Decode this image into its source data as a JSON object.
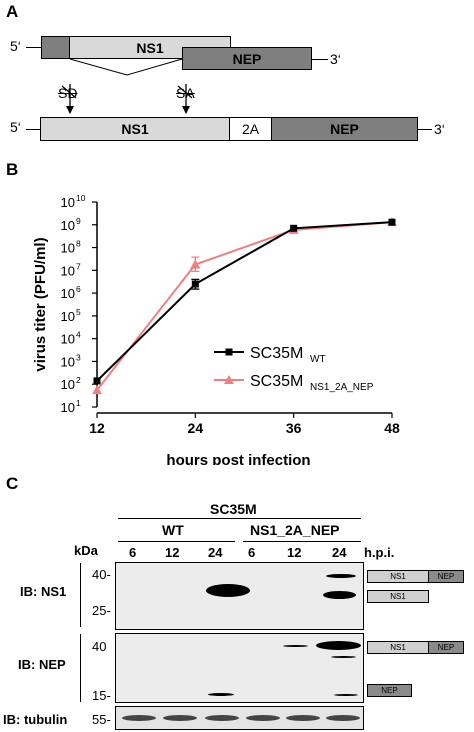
{
  "panel_a": {
    "letter": "A",
    "five_prime": "5‘",
    "three_prime": "3‘",
    "ns1": "NS1",
    "nep": "NEP",
    "two_a": "2A",
    "sd": "SD",
    "sa": "SA"
  },
  "panel_b": {
    "letter": "B",
    "chart_data": {
      "type": "line",
      "x": [
        12,
        24,
        36,
        48
      ],
      "xlabel": "hours post infection",
      "ylabel": "virus titer (PFU/ml)",
      "y_log_scale": true,
      "ylim_exponents": [
        1,
        10
      ],
      "yticks": [
        "10",
        "10",
        "10",
        "10",
        "10",
        "10",
        "10",
        "10",
        "10",
        "10"
      ],
      "ytick_exponents": [
        "1",
        "2",
        "3",
        "4",
        "5",
        "6",
        "7",
        "8",
        "9",
        "10"
      ],
      "xticks": [
        "12",
        "24",
        "36",
        "48"
      ],
      "series": [
        {
          "name": "SC35M",
          "subscript": "WT",
          "color": "#000000",
          "marker": "square",
          "values": [
            140,
            2500000,
            700000000,
            1300000000
          ]
        },
        {
          "name": "SC35M",
          "subscript": "NS1_2A_NEP",
          "color": "#f08080",
          "marker": "triangle",
          "values": [
            55,
            18000000,
            600000000,
            1300000000
          ]
        }
      ],
      "legend_position": "lower-right"
    }
  },
  "panel_c": {
    "letter": "C",
    "strain": "SC35M",
    "group_wt": "WT",
    "group_mut": "NS1_2A_NEP",
    "kda": "kDa",
    "hpi": "h.p.i.",
    "lanes": [
      "6",
      "12",
      "24",
      "6",
      "12",
      "24"
    ],
    "ib_ns1": "IB: NS1",
    "ib_nep": "IB: NEP",
    "ib_tubulin": "IB: tubulin",
    "mw_40a": "40-",
    "mw_25": "25-",
    "mw_40b": "40",
    "mw_15": "15-",
    "mw_55": "55-",
    "legend_ns1": "NS1",
    "legend_nep": "NEP"
  }
}
